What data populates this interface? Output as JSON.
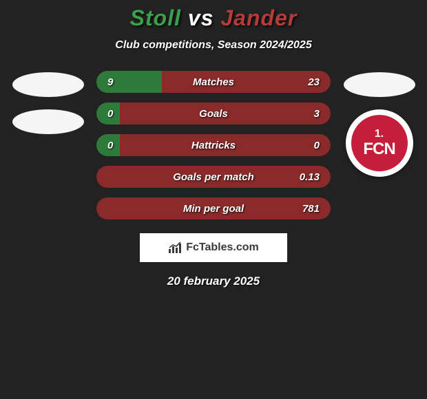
{
  "title": {
    "left": "Stoll",
    "vs": " vs ",
    "right": "Jander",
    "left_color": "#3aa04a",
    "right_color": "#b53a3a"
  },
  "subtitle": "Club competitions, Season 2024/2025",
  "left_side": {
    "placeholders": 2
  },
  "right_side": {
    "placeholders": 1,
    "badge": {
      "bg_color": "#c41e3a",
      "top_text": "1.",
      "bottom_text": "FCN"
    }
  },
  "stats": {
    "bar_bg_color": "#8a2a2a",
    "fill_color": "#2e7a3a",
    "rows": [
      {
        "left": "9",
        "label": "Matches",
        "right": "23",
        "fill_pct": 28
      },
      {
        "left": "0",
        "label": "Goals",
        "right": "3",
        "fill_pct": 10
      },
      {
        "left": "0",
        "label": "Hattricks",
        "right": "0",
        "fill_pct": 10
      },
      {
        "left": "",
        "label": "Goals per match",
        "right": "0.13",
        "fill_pct": 0
      },
      {
        "left": "",
        "label": "Min per goal",
        "right": "781",
        "fill_pct": 0
      }
    ]
  },
  "watermark": "FcTables.com",
  "date": "20 february 2025",
  "colors": {
    "page_bg": "#222222",
    "text": "#ffffff",
    "watermark_bg": "#ffffff",
    "watermark_text": "#3a3a3a"
  }
}
